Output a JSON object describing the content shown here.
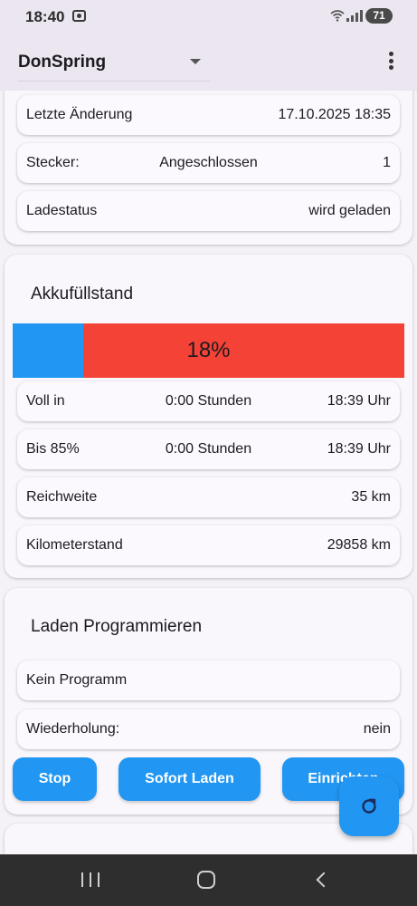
{
  "status_bar": {
    "time": "18:40",
    "battery": "71"
  },
  "app_bar": {
    "profile": "DonSpring"
  },
  "status_card": {
    "rows": [
      {
        "label": "Letzte Änderung",
        "value": "17.10.2025 18:35"
      },
      {
        "label": "Stecker:",
        "middle": "Angeschlossen",
        "value": "1"
      },
      {
        "label": "Ladestatus",
        "value": "wird geladen"
      }
    ]
  },
  "battery_card": {
    "title": "Akkufüllstand",
    "level_percent": 18,
    "level_text": "18%",
    "colors": {
      "filled": "#2196f3",
      "empty": "#f44336"
    },
    "rows": [
      {
        "label": "Voll in",
        "middle": "0:00 Stunden",
        "value": "18:39 Uhr"
      },
      {
        "label": "Bis 85%",
        "middle": "0:00 Stunden",
        "value": "18:39 Uhr"
      },
      {
        "label": "Reichweite",
        "value": "35 km"
      },
      {
        "label": "Kilometerstand",
        "value": "29858 km"
      }
    ]
  },
  "program_card": {
    "title": "Laden Programmieren",
    "rows": [
      {
        "label": "Kein Programm"
      },
      {
        "label": "Wiederholung:",
        "value": "nein"
      }
    ],
    "buttons": {
      "stop": "Stop",
      "charge_now": "Sofort Laden",
      "setup": "Einrichten"
    }
  },
  "fab": {
    "icon": "refresh-icon",
    "color": "#2196f3"
  },
  "nav": {
    "icons": [
      "recents-icon",
      "home-icon",
      "back-icon"
    ]
  }
}
